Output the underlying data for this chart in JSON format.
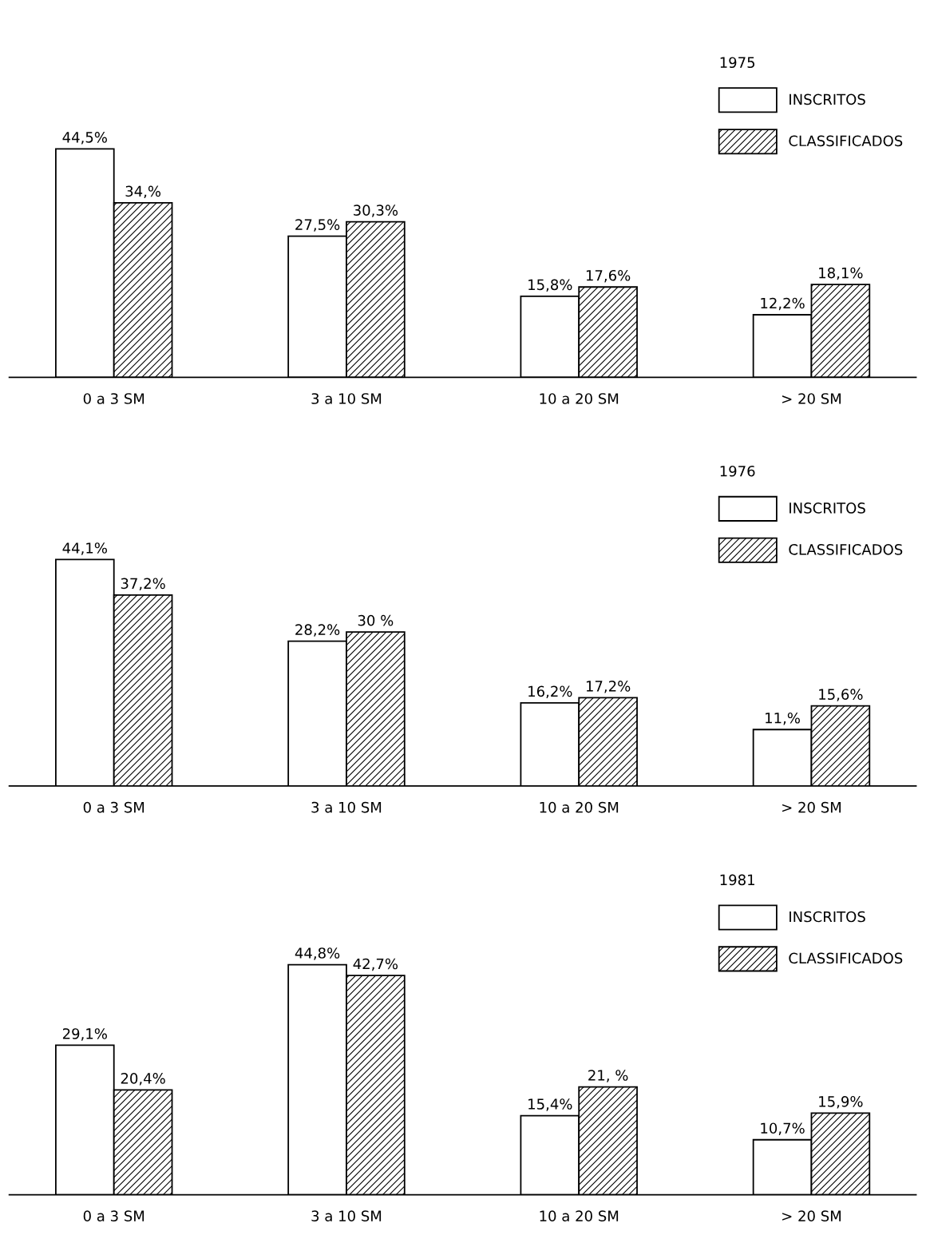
{
  "chart_data": [
    {
      "type": "bar",
      "legend_title": "1975",
      "legend": "top right",
      "categories": [
        "0 a 3 SM",
        "3 a 10 SM",
        "10 a 20 SM",
        "> 20 SM"
      ],
      "series": [
        {
          "name": "INSCRITOS",
          "color": "#ffffff",
          "values": [
            44.5,
            27.5,
            15.8,
            12.2
          ],
          "value_labels": [
            "44,5%",
            "27,5%",
            "15,8%",
            "12,2%"
          ]
        },
        {
          "name": "CLASSIFICADOS",
          "color": "#000000",
          "values": [
            34,
            30.3,
            17.6,
            18.1
          ],
          "value_labels": [
            "34,%",
            "30,3%",
            "17,6%",
            "18,1%"
          ]
        }
      ]
    },
    {
      "type": "bar",
      "legend_title": "1976",
      "legend": "top right",
      "categories": [
        "0 a 3 SM",
        "3 a 10 SM",
        "10 a 20 SM",
        "> 20 SM"
      ],
      "series": [
        {
          "name": "INSCRITOS",
          "color": "#ffffff",
          "values": [
            44.1,
            28.2,
            16.2,
            11
          ],
          "value_labels": [
            "44,1%",
            "28,2%",
            "16,2%",
            "11,%"
          ]
        },
        {
          "name": "CLASSIFICADOS",
          "color": "#000000",
          "values": [
            37.2,
            30,
            17.2,
            15.6
          ],
          "value_labels": [
            "37,2%",
            "30 %",
            "17,2%",
            "15,6%"
          ]
        }
      ]
    },
    {
      "type": "bar",
      "legend_title": "1981",
      "legend": "top right",
      "categories": [
        "0 a 3 SM",
        "3 a 10 SM",
        "10 a 20 SM",
        "> 20 SM"
      ],
      "series": [
        {
          "name": "INSCRITOS",
          "color": "#ffffff",
          "values": [
            29.1,
            44.8,
            15.4,
            10.7
          ],
          "value_labels": [
            "29,1%",
            "44,8%",
            "15,4%",
            "10,7%"
          ]
        },
        {
          "name": "CLASSIFICADOS",
          "color": "#000000",
          "values": [
            20.4,
            42.7,
            21,
            15.9
          ],
          "value_labels": [
            "20,4%",
            "42,7%",
            "21, %",
            "15,9%"
          ]
        }
      ]
    }
  ]
}
